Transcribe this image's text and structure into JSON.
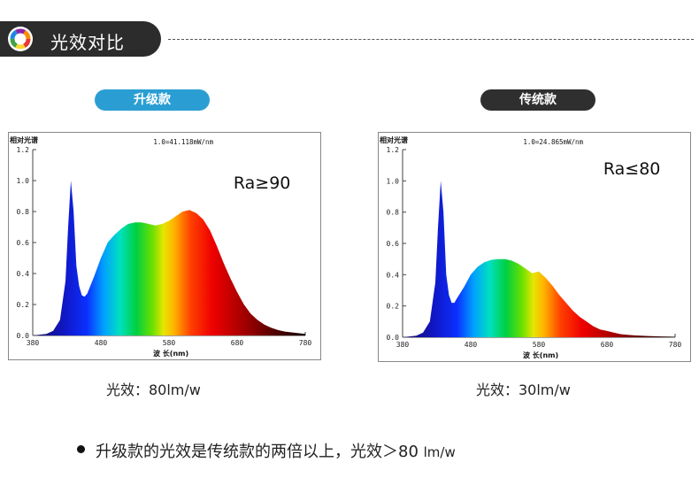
{
  "header": {
    "title": "光效对比"
  },
  "colors": {
    "header_bg": "#2c2c2c",
    "upgrade_badge": "#2a9ed3",
    "legacy_badge": "#2f2f2f"
  },
  "badges": {
    "upgrade": "升级款",
    "legacy": "传统款"
  },
  "efficacy": {
    "left": "光效：80lm/w",
    "right": "光效：30lm/w"
  },
  "summary": {
    "text": "升级款的光效是传统款的两倍以上，光效＞80 ",
    "unit": "lm/w"
  },
  "chart_data": [
    {
      "type": "area",
      "panel_label": "相对光谱",
      "scale_note": "1.0=41.118mW/nm",
      "ra_label": "Ra≥90",
      "xlabel": "波 长(nm)",
      "xlim": [
        380,
        780
      ],
      "ylim": [
        0,
        1.2
      ],
      "xticks": [
        "380",
        "480",
        "580",
        "680",
        "780"
      ],
      "yticks": [
        "0.0",
        "0.2",
        "0.4",
        "0.6",
        "0.8",
        "1.0",
        "1.2"
      ],
      "x": [
        380,
        400,
        410,
        420,
        428,
        432,
        436,
        440,
        444,
        448,
        452,
        456,
        460,
        470,
        480,
        490,
        500,
        510,
        520,
        530,
        540,
        550,
        560,
        570,
        580,
        590,
        600,
        610,
        620,
        630,
        640,
        650,
        660,
        670,
        680,
        690,
        700,
        710,
        720,
        730,
        740,
        750,
        760,
        770,
        780
      ],
      "y": [
        0.0,
        0.01,
        0.03,
        0.1,
        0.35,
        0.7,
        1.0,
        0.8,
        0.45,
        0.32,
        0.26,
        0.25,
        0.27,
        0.38,
        0.5,
        0.6,
        0.65,
        0.69,
        0.72,
        0.73,
        0.73,
        0.72,
        0.71,
        0.72,
        0.74,
        0.77,
        0.8,
        0.81,
        0.79,
        0.75,
        0.68,
        0.58,
        0.47,
        0.37,
        0.28,
        0.2,
        0.14,
        0.1,
        0.07,
        0.05,
        0.035,
        0.025,
        0.02,
        0.015,
        0.01
      ]
    },
    {
      "type": "area",
      "panel_label": "相对光谱",
      "scale_note": "1.0=24.865mW/nm",
      "ra_label": "Ra≤80",
      "xlabel": "波 长(nm)",
      "xlim": [
        380,
        780
      ],
      "ylim": [
        0,
        1.2
      ],
      "xticks": [
        "380",
        "480",
        "580",
        "680",
        "780"
      ],
      "yticks": [
        "0.0",
        "0.2",
        "0.4",
        "0.6",
        "0.8",
        "1.0",
        "1.2"
      ],
      "x": [
        380,
        400,
        410,
        420,
        428,
        432,
        436,
        440,
        444,
        448,
        452,
        456,
        460,
        470,
        480,
        490,
        500,
        510,
        520,
        530,
        540,
        550,
        560,
        570,
        580,
        590,
        600,
        610,
        620,
        630,
        640,
        650,
        660,
        670,
        680,
        690,
        700,
        710,
        720,
        730,
        740,
        750,
        760,
        770,
        780
      ],
      "y": [
        0.0,
        0.01,
        0.03,
        0.1,
        0.35,
        0.7,
        1.0,
        0.8,
        0.4,
        0.27,
        0.22,
        0.22,
        0.25,
        0.32,
        0.4,
        0.45,
        0.48,
        0.495,
        0.5,
        0.5,
        0.49,
        0.47,
        0.44,
        0.41,
        0.42,
        0.38,
        0.33,
        0.27,
        0.22,
        0.17,
        0.13,
        0.1,
        0.07,
        0.05,
        0.04,
        0.03,
        0.02,
        0.015,
        0.012,
        0.01,
        0.008,
        0.006,
        0.005,
        0.004,
        0.003
      ]
    }
  ]
}
